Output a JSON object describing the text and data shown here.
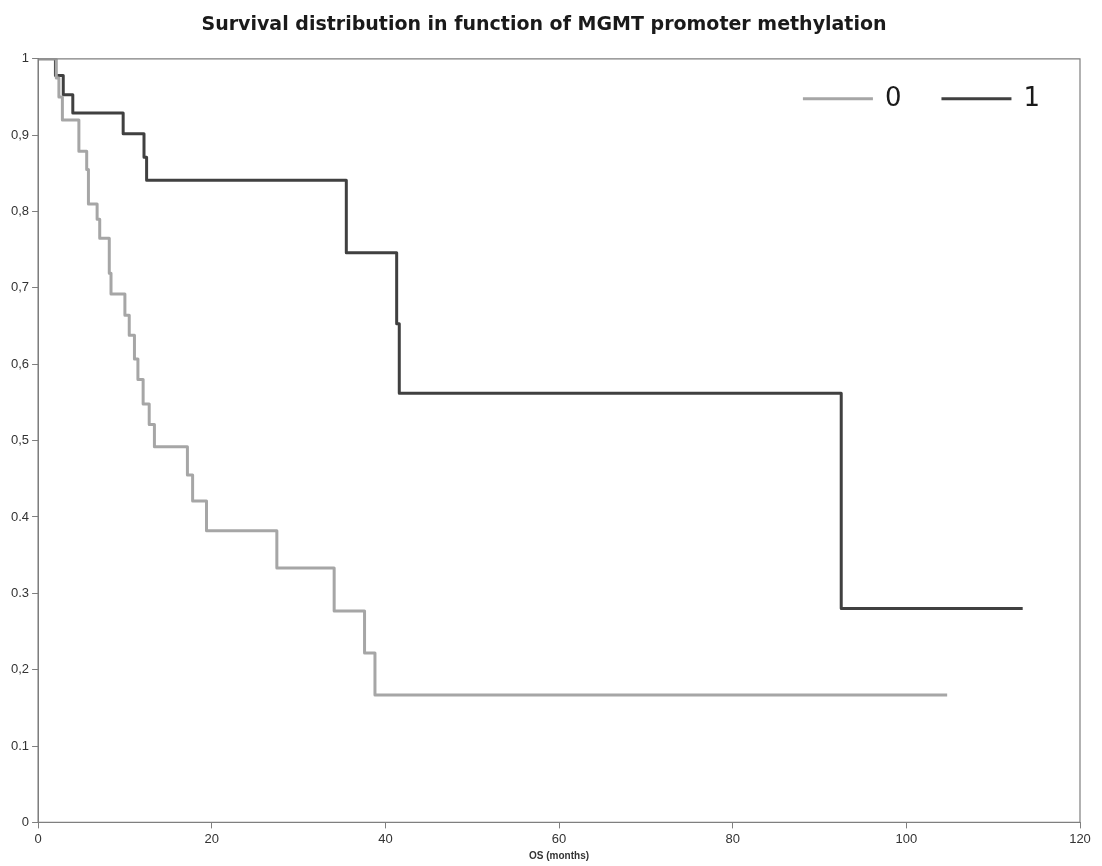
{
  "chart_data": {
    "type": "step",
    "title": "Survival distribution in function of MGMT promoter methylation",
    "xlabel": "OS (months)",
    "xlim": [
      0,
      120
    ],
    "xticks": [
      0,
      20,
      40,
      60,
      80,
      100,
      120
    ],
    "ylim": [
      0,
      1
    ],
    "yticks": [
      0,
      {
        "value": 0.1,
        "label": "0.1"
      },
      {
        "value": 0.2,
        "label": "0,2"
      },
      {
        "value": 0.3,
        "label": "0.3"
      },
      {
        "value": 0.4,
        "label": "0.4"
      },
      {
        "value": 0.5,
        "label": "0,5"
      },
      {
        "value": 0.6,
        "label": "0,6"
      },
      {
        "value": 0.7,
        "label": "0,7"
      },
      {
        "value": 0.8,
        "label": "0,8"
      },
      {
        "value": 0.9,
        "label": "0,9"
      },
      1
    ],
    "grid": false,
    "legend": "top right",
    "marker": "none",
    "line_style": "solid",
    "series": [
      {
        "name": "0",
        "color": "#a6a6a6",
        "x": [
          0,
          2.1,
          2.4,
          2.8,
          4.7,
          5.6,
          5.8,
          6.8,
          7.1,
          8.2,
          8.4,
          10.0,
          10.5,
          11.1,
          11.5,
          12.1,
          12.8,
          13.4,
          17.2,
          17.8,
          19.4,
          27.5,
          34.1,
          37.6,
          38.8,
          104.7
        ],
        "values": [
          1,
          0.975,
          0.95,
          0.92,
          0.879,
          0.855,
          0.81,
          0.79,
          0.765,
          0.719,
          0.692,
          0.664,
          0.638,
          0.607,
          0.58,
          0.548,
          0.521,
          0.492,
          0.455,
          0.421,
          0.382,
          0.333,
          0.277,
          0.222,
          0.167,
          0.167
        ]
      },
      {
        "name": "1",
        "color": "#404040",
        "x": [
          0,
          2.0,
          2.9,
          4.0,
          9.8,
          12.2,
          12.5,
          35.5,
          41.3,
          41.6,
          92.5,
          113.4
        ],
        "values": [
          1,
          0.978,
          0.953,
          0.929,
          0.902,
          0.871,
          0.841,
          0.746,
          0.653,
          0.562,
          0.28,
          0.28
        ]
      }
    ]
  }
}
